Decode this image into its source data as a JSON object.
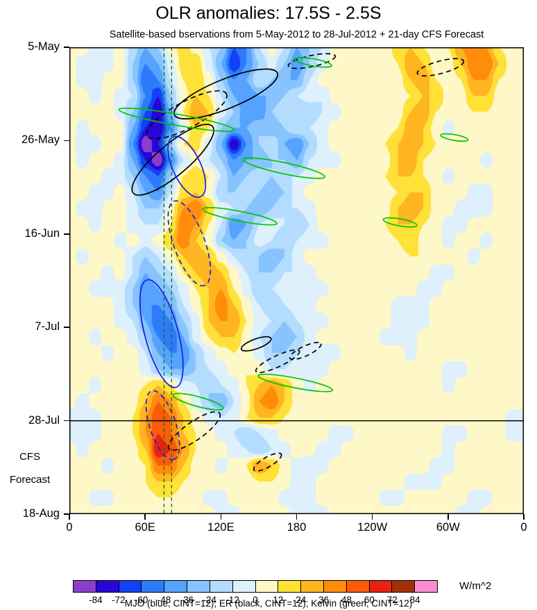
{
  "header": {
    "title": "OLR anomalies: 17.5S - 2.5S",
    "subtitle": "Satellite-based bservations from 5-May-2012 to 28-Jul-2012 + 21-day CFS Forecast"
  },
  "axes": {
    "time_span_days": 105,
    "lon_span_deg": 360,
    "y_ticks": [
      {
        "label": "5-May",
        "day": 0
      },
      {
        "label": "26-May",
        "day": 21
      },
      {
        "label": "16-Jun",
        "day": 42
      },
      {
        "label": "7-Jul",
        "day": 63
      },
      {
        "label": "28-Jul",
        "day": 84
      },
      {
        "label": "18-Aug",
        "day": 105
      }
    ],
    "x_ticks": [
      {
        "label": "0",
        "lon": 0
      },
      {
        "label": "60E",
        "lon": 60
      },
      {
        "label": "120E",
        "lon": 120
      },
      {
        "label": "180",
        "lon": 180
      },
      {
        "label": "120W",
        "lon": 240
      },
      {
        "label": "60W",
        "lon": 300
      },
      {
        "label": "0",
        "lon": 360
      }
    ],
    "forecast_annotation": {
      "line1": "CFS",
      "line2": "Forecast",
      "day_line1": 92.2,
      "day_line2": 97.4
    }
  },
  "colorbar": {
    "levels": [
      -84,
      -72,
      -60,
      -48,
      -36,
      -24,
      -12,
      0,
      12,
      24,
      36,
      48,
      60,
      72,
      84
    ],
    "palette": [
      "#8B3FC9",
      "#2806D7",
      "#1341F5",
      "#2D7BFA",
      "#55A2FF",
      "#86C3FF",
      "#B4DCFF",
      "#DDF0FB",
      "#FEF7C8",
      "#FFE137",
      "#FFB421",
      "#FF8C0A",
      "#FC5A0C",
      "#E62312",
      "#A33108",
      "#FB8ECF"
    ],
    "unit": "W/m^2"
  },
  "caption": "MJO (blue, CINT=12); ER (black, CINT=12); Kelvin (green, CINT=12)",
  "chart_data": {
    "type": "heatmap",
    "title": "OLR anomalies: 17.5S - 2.5S",
    "units": "W/m^2",
    "x": {
      "label": "longitude",
      "start_deg": 0,
      "end_deg": 360,
      "n_cols": 36
    },
    "y": {
      "label": "time",
      "start": "5-May-2012",
      "end": "18-Aug-2012",
      "forecast_start": "28-Jul-2012",
      "n_rows": 30
    },
    "values": [
      [
        6,
        6,
        -6,
        -6,
        6,
        -18,
        -36,
        -24,
        6,
        18,
        6,
        -12,
        -24,
        -60,
        -48,
        -12,
        6,
        -12,
        -36,
        -24,
        -12,
        6,
        6,
        6,
        12,
        6,
        18,
        24,
        12,
        6,
        12,
        36,
        48,
        36,
        12,
        6
      ],
      [
        6,
        -6,
        -12,
        -6,
        6,
        -24,
        -48,
        -36,
        -6,
        18,
        24,
        -6,
        -36,
        -72,
        -48,
        -24,
        -6,
        -24,
        -48,
        -24,
        -6,
        6,
        6,
        12,
        12,
        6,
        12,
        36,
        24,
        6,
        6,
        24,
        48,
        48,
        24,
        6
      ],
      [
        6,
        -6,
        -12,
        6,
        6,
        -24,
        -60,
        -48,
        -12,
        12,
        24,
        6,
        -24,
        -48,
        -36,
        -12,
        -24,
        -36,
        -36,
        -12,
        6,
        6,
        12,
        12,
        6,
        6,
        6,
        24,
        36,
        12,
        6,
        12,
        36,
        36,
        12,
        6
      ],
      [
        6,
        6,
        -6,
        6,
        -6,
        -12,
        -48,
        -72,
        -24,
        6,
        24,
        12,
        -12,
        -36,
        -48,
        -36,
        -36,
        -24,
        -12,
        -6,
        -12,
        6,
        12,
        6,
        6,
        12,
        6,
        12,
        24,
        24,
        6,
        6,
        24,
        24,
        6,
        6
      ],
      [
        12,
        6,
        6,
        6,
        -6,
        -24,
        -60,
        -84,
        -36,
        12,
        36,
        24,
        -6,
        -24,
        -48,
        -48,
        -24,
        -12,
        -24,
        -24,
        -12,
        -6,
        6,
        6,
        12,
        12,
        6,
        24,
        36,
        12,
        6,
        6,
        12,
        12,
        6,
        6
      ],
      [
        6,
        -6,
        6,
        12,
        6,
        -36,
        -72,
        -84,
        -48,
        -6,
        24,
        12,
        -24,
        -36,
        -36,
        -24,
        -36,
        -24,
        -12,
        -12,
        -6,
        6,
        12,
        12,
        6,
        6,
        12,
        36,
        24,
        6,
        -6,
        6,
        6,
        6,
        12,
        6
      ],
      [
        6,
        -12,
        -6,
        6,
        6,
        -48,
        -96,
        -72,
        -24,
        12,
        18,
        -6,
        -36,
        -84,
        -48,
        -24,
        -12,
        -36,
        -48,
        -24,
        -6,
        6,
        6,
        6,
        6,
        12,
        24,
        36,
        24,
        12,
        6,
        6,
        12,
        6,
        6,
        6
      ],
      [
        6,
        -6,
        6,
        6,
        -6,
        -36,
        -72,
        -96,
        -48,
        -12,
        6,
        -12,
        -24,
        -48,
        -36,
        -36,
        -24,
        -24,
        -36,
        -12,
        -6,
        -6,
        6,
        12,
        12,
        6,
        24,
        36,
        12,
        6,
        6,
        6,
        6,
        -6,
        6,
        6
      ],
      [
        6,
        6,
        6,
        -6,
        -6,
        -24,
        -48,
        -60,
        -24,
        12,
        24,
        12,
        -12,
        -36,
        -24,
        -12,
        -24,
        -12,
        -12,
        -6,
        6,
        6,
        6,
        6,
        6,
        12,
        24,
        24,
        12,
        6,
        -6,
        6,
        6,
        6,
        6,
        6
      ],
      [
        6,
        6,
        -6,
        -6,
        6,
        -12,
        -36,
        -48,
        -12,
        18,
        24,
        6,
        -24,
        -24,
        -12,
        -24,
        -36,
        -24,
        -6,
        6,
        6,
        12,
        6,
        6,
        6,
        6,
        12,
        24,
        24,
        6,
        6,
        6,
        -6,
        -6,
        6,
        6
      ],
      [
        6,
        -6,
        -12,
        6,
        6,
        -6,
        -24,
        -24,
        6,
        36,
        48,
        24,
        -6,
        -12,
        -24,
        -36,
        -24,
        -12,
        -12,
        -6,
        6,
        6,
        6,
        6,
        6,
        6,
        24,
        36,
        24,
        6,
        6,
        -6,
        -12,
        -6,
        6,
        6
      ],
      [
        6,
        6,
        -6,
        6,
        6,
        -6,
        -12,
        -12,
        12,
        48,
        36,
        12,
        -12,
        -48,
        -36,
        -12,
        -6,
        -12,
        -24,
        -12,
        6,
        6,
        6,
        6,
        6,
        12,
        24,
        24,
        12,
        6,
        -6,
        -6,
        6,
        6,
        6,
        6
      ],
      [
        6,
        6,
        6,
        6,
        -6,
        6,
        -6,
        6,
        24,
        48,
        24,
        6,
        -24,
        -36,
        -24,
        -6,
        -12,
        -24,
        -12,
        -6,
        -6,
        6,
        6,
        12,
        6,
        6,
        12,
        24,
        6,
        6,
        -6,
        6,
        6,
        -6,
        6,
        6
      ],
      [
        6,
        -6,
        6,
        6,
        6,
        -12,
        -24,
        -12,
        6,
        24,
        36,
        24,
        6,
        -12,
        -24,
        -24,
        -36,
        -24,
        -6,
        6,
        6,
        6,
        6,
        6,
        6,
        6,
        6,
        12,
        12,
        6,
        6,
        6,
        -6,
        6,
        6,
        6
      ],
      [
        12,
        6,
        6,
        -6,
        6,
        -12,
        -36,
        -24,
        -12,
        12,
        24,
        36,
        24,
        6,
        -12,
        -24,
        -24,
        -12,
        -12,
        -6,
        6,
        6,
        12,
        6,
        6,
        6,
        6,
        6,
        6,
        -6,
        -6,
        6,
        6,
        6,
        6,
        6
      ],
      [
        6,
        6,
        -6,
        -6,
        -6,
        -24,
        -48,
        -36,
        -24,
        -6,
        12,
        24,
        36,
        12,
        -6,
        -24,
        -12,
        -6,
        -12,
        -12,
        -6,
        6,
        6,
        6,
        12,
        6,
        6,
        6,
        -6,
        -6,
        6,
        6,
        6,
        6,
        6,
        6
      ],
      [
        6,
        12,
        6,
        6,
        -6,
        -24,
        -48,
        -48,
        -36,
        -12,
        6,
        24,
        48,
        24,
        6,
        -12,
        -24,
        -12,
        -6,
        -6,
        6,
        6,
        6,
        6,
        6,
        6,
        -6,
        -6,
        -6,
        6,
        6,
        6,
        6,
        6,
        6,
        6
      ],
      [
        6,
        6,
        6,
        6,
        -6,
        -12,
        -36,
        -60,
        -48,
        -24,
        -6,
        24,
        36,
        36,
        12,
        -6,
        -12,
        -24,
        -12,
        -6,
        -6,
        6,
        6,
        6,
        6,
        6,
        -6,
        -12,
        -6,
        6,
        6,
        6,
        6,
        6,
        6,
        6
      ],
      [
        12,
        6,
        -6,
        6,
        6,
        -6,
        -24,
        -48,
        -60,
        -36,
        -6,
        12,
        24,
        24,
        6,
        -12,
        -24,
        -36,
        -24,
        -6,
        6,
        6,
        6,
        6,
        6,
        -6,
        -6,
        -6,
        6,
        6,
        6,
        6,
        6,
        6,
        6,
        6
      ],
      [
        6,
        6,
        6,
        -6,
        6,
        6,
        -12,
        -36,
        -48,
        -48,
        -24,
        -6,
        6,
        12,
        6,
        -6,
        -24,
        -24,
        -12,
        -6,
        -12,
        -6,
        6,
        6,
        6,
        6,
        6,
        -6,
        6,
        6,
        6,
        6,
        6,
        6,
        6,
        6
      ],
      [
        6,
        6,
        6,
        6,
        6,
        6,
        -6,
        -24,
        -36,
        -36,
        -24,
        -12,
        -6,
        6,
        12,
        6,
        -12,
        -12,
        -6,
        -12,
        -6,
        6,
        6,
        6,
        6,
        6,
        6,
        6,
        6,
        6,
        -6,
        -6,
        6,
        6,
        6,
        6
      ],
      [
        6,
        6,
        -6,
        6,
        6,
        6,
        12,
        24,
        12,
        -6,
        -12,
        -24,
        -12,
        -6,
        12,
        24,
        36,
        24,
        6,
        -6,
        6,
        6,
        6,
        6,
        6,
        6,
        6,
        6,
        6,
        6,
        -6,
        6,
        6,
        6,
        6,
        6
      ],
      [
        6,
        -6,
        6,
        6,
        6,
        6,
        24,
        48,
        36,
        12,
        -6,
        -24,
        -36,
        -12,
        6,
        36,
        48,
        24,
        6,
        6,
        6,
        6,
        12,
        6,
        6,
        6,
        6,
        6,
        6,
        6,
        6,
        6,
        6,
        6,
        6,
        6
      ],
      [
        -6,
        -12,
        -6,
        6,
        6,
        12,
        36,
        60,
        48,
        24,
        6,
        -6,
        -12,
        -6,
        12,
        24,
        24,
        12,
        6,
        6,
        6,
        6,
        6,
        6,
        6,
        6,
        6,
        6,
        6,
        6,
        6,
        6,
        6,
        6,
        6,
        -6
      ],
      [
        -6,
        -6,
        -6,
        6,
        6,
        12,
        36,
        60,
        48,
        24,
        12,
        6,
        -6,
        -12,
        -24,
        -12,
        -6,
        6,
        6,
        6,
        6,
        -6,
        -6,
        6,
        6,
        6,
        6,
        6,
        6,
        6,
        -6,
        -6,
        6,
        6,
        6,
        -6
      ],
      [
        6,
        -6,
        6,
        6,
        6,
        6,
        24,
        72,
        60,
        36,
        12,
        6,
        6,
        -6,
        -12,
        -24,
        -12,
        -6,
        6,
        6,
        -6,
        -6,
        6,
        6,
        6,
        6,
        6,
        6,
        6,
        6,
        -6,
        6,
        6,
        6,
        6,
        6
      ],
      [
        6,
        6,
        6,
        -6,
        6,
        6,
        12,
        48,
        48,
        24,
        6,
        6,
        -6,
        6,
        12,
        36,
        24,
        6,
        -6,
        -12,
        -6,
        6,
        6,
        6,
        6,
        6,
        6,
        6,
        6,
        -6,
        -6,
        6,
        6,
        6,
        6,
        6
      ],
      [
        6,
        6,
        6,
        6,
        6,
        6,
        12,
        24,
        24,
        12,
        6,
        6,
        6,
        6,
        6,
        12,
        12,
        6,
        -6,
        -6,
        6,
        6,
        6,
        6,
        6,
        6,
        6,
        -6,
        -6,
        -6,
        6,
        6,
        6,
        6,
        6,
        6
      ],
      [
        6,
        6,
        -6,
        -6,
        6,
        6,
        6,
        12,
        12,
        6,
        6,
        -6,
        -6,
        6,
        6,
        6,
        6,
        -6,
        -12,
        -6,
        6,
        6,
        6,
        6,
        6,
        -6,
        -6,
        6,
        6,
        6,
        6,
        6,
        -6,
        -6,
        6,
        6
      ],
      [
        6,
        6,
        6,
        6,
        6,
        6,
        6,
        12,
        6,
        6,
        6,
        6,
        -6,
        -6,
        6,
        6,
        6,
        6,
        -6,
        -6,
        -6,
        6,
        6,
        6,
        6,
        6,
        6,
        6,
        6,
        6,
        6,
        -6,
        -6,
        6,
        6,
        6
      ]
    ],
    "annotations": {
      "wave_colors": {
        "MJO": "#1C1CE0",
        "ER": "#000000",
        "Kelvin": "#00C400"
      },
      "vline_color": "#067806",
      "vlines_lon": [
        75,
        81
      ],
      "hline_day": 84,
      "ellipses": [
        {
          "wave": "ER",
          "style": "solid",
          "lon": 124,
          "day": 10.5,
          "lon_ext": 88,
          "day_ext": 6.6,
          "rot": -22
        },
        {
          "wave": "ER",
          "style": "dashed",
          "lon": 93,
          "day": 15.2,
          "lon_ext": 71,
          "day_ext": 5.9,
          "rot": -28
        },
        {
          "wave": "ER",
          "style": "dashed",
          "lon": 294,
          "day": 4.5,
          "lon_ext": 38,
          "day_ext": 2.8,
          "rot": -15
        },
        {
          "wave": "ER",
          "style": "dashed",
          "lon": 192,
          "day": 3.1,
          "lon_ext": 38,
          "day_ext": 2.5,
          "rot": -12
        },
        {
          "wave": "ER",
          "style": "solid",
          "lon": 82,
          "day": 25.3,
          "lon_ext": 82,
          "day_ext": 7.0,
          "rot": -40
        },
        {
          "wave": "ER",
          "style": "solid",
          "lon": 148,
          "day": 66.7,
          "lon_ext": 25,
          "day_ext": 2.2,
          "rot": -20
        },
        {
          "wave": "ER",
          "style": "dashed",
          "lon": 165,
          "day": 70.6,
          "lon_ext": 38,
          "day_ext": 2.5,
          "rot": -25
        },
        {
          "wave": "ER",
          "style": "dashed",
          "lon": 187,
          "day": 68.3,
          "lon_ext": 27,
          "day_ext": 2.2,
          "rot": -25
        },
        {
          "wave": "ER",
          "style": "dashed",
          "lon": 99,
          "day": 86.3,
          "lon_ext": 49,
          "day_ext": 4.1,
          "rot": -35
        },
        {
          "wave": "ER",
          "style": "dashed",
          "lon": 157,
          "day": 93.3,
          "lon_ext": 25,
          "day_ext": 2.2,
          "rot": -30
        },
        {
          "wave": "Kelvin",
          "style": "solid",
          "lon": 85,
          "day": 16.3,
          "lon_ext": 93,
          "day_ext": 2.5,
          "rot": 10
        },
        {
          "wave": "Kelvin",
          "style": "solid",
          "lon": 170,
          "day": 27.2,
          "lon_ext": 66,
          "day_ext": 2.5,
          "rot": 12
        },
        {
          "wave": "Kelvin",
          "style": "solid",
          "lon": 135,
          "day": 38.0,
          "lon_ext": 60,
          "day_ext": 2.2,
          "rot": 11
        },
        {
          "wave": "Kelvin",
          "style": "solid",
          "lon": 193,
          "day": 3.4,
          "lon_ext": 30,
          "day_ext": 1.6,
          "rot": 10
        },
        {
          "wave": "Kelvin",
          "style": "solid",
          "lon": 262,
          "day": 39.4,
          "lon_ext": 27,
          "day_ext": 1.6,
          "rot": 10
        },
        {
          "wave": "Kelvin",
          "style": "solid",
          "lon": 305,
          "day": 20.3,
          "lon_ext": 22,
          "day_ext": 1.3,
          "rot": 10
        },
        {
          "wave": "Kelvin",
          "style": "solid",
          "lon": 179,
          "day": 75.5,
          "lon_ext": 60,
          "day_ext": 2.2,
          "rot": 11
        },
        {
          "wave": "Kelvin",
          "style": "solid",
          "lon": 102,
          "day": 79.7,
          "lon_ext": 41,
          "day_ext": 2.2,
          "rot": 15
        },
        {
          "wave": "MJO",
          "style": "solid",
          "lon": 93,
          "day": 26.9,
          "lon_ext": 52,
          "day_ext": 6.3,
          "rot": 65
        },
        {
          "wave": "MJO",
          "style": "dashed",
          "lon": 95,
          "day": 44.1,
          "lon_ext": 71,
          "day_ext": 7.0,
          "rot": 70
        },
        {
          "wave": "MJO",
          "style": "solid",
          "lon": 73,
          "day": 64.4,
          "lon_ext": 88,
          "day_ext": 7.5,
          "rot": 75
        },
        {
          "wave": "MJO",
          "style": "dashed",
          "lon": 74,
          "day": 85.0,
          "lon_ext": 57,
          "day_ext": 5.9,
          "rot": 72
        }
      ]
    }
  }
}
